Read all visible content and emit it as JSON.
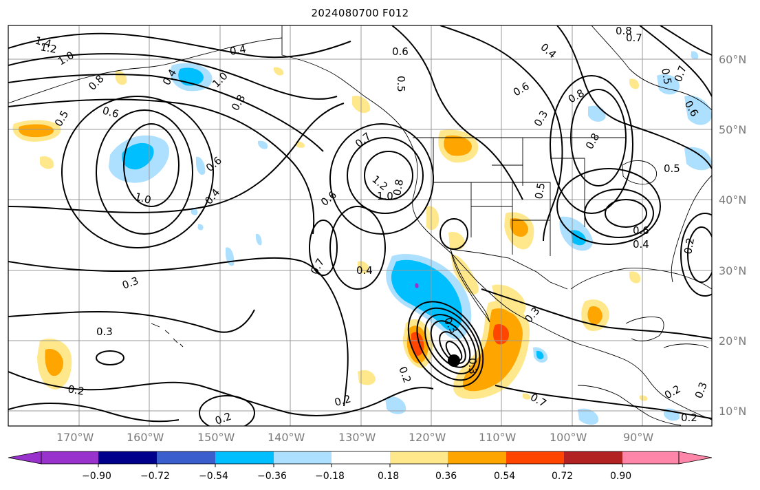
{
  "title": "2024080700 F012",
  "latitude_labels": [
    "60°N",
    "50°N",
    "40°N",
    "30°N",
    "20°N",
    "10°N"
  ],
  "longitude_labels": [
    "170°W",
    "160°W",
    "150°W",
    "140°W",
    "130°W",
    "120°W",
    "110°W",
    "100°W",
    "90°W"
  ],
  "contour_labels": [
    "1.4",
    "1.2",
    "1.0",
    "0.8",
    "0.6",
    "0.5",
    "0.4",
    "0.4",
    "0.6",
    "0.4",
    "0.5",
    "0.8",
    "0.7",
    "1.0",
    "0.8",
    "0.6",
    "0.4",
    "0.7",
    "1.2",
    "1.0",
    "0.8",
    "0.6",
    "0.3",
    "0.3",
    "0.7",
    "0.4",
    "0.2",
    "0.2",
    "0.2",
    "0.3",
    "0.3",
    "0.2",
    "0.3",
    "0.7",
    "0.6",
    "0.8",
    "0.3",
    "0.5",
    "0.6",
    "0.4",
    "0.2",
    "0.3",
    "0.2",
    "0.2",
    "0.8",
    "1.0",
    "0.5",
    "0.7",
    "0.6",
    "0.5"
  ],
  "colorbar": {
    "ticks": [
      "−0.90",
      "−0.72",
      "−0.54",
      "−0.36",
      "−0.18",
      "0.18",
      "0.36",
      "0.54",
      "0.72",
      "0.90"
    ],
    "colors": [
      "#9932CC",
      "#00008B",
      "#3A5FCD",
      "#00BFFF",
      "#ADDFFF",
      "#FFFFFF",
      "#FFE88C",
      "#FFA500",
      "#FF4500",
      "#B22222",
      "#FF86A8"
    ]
  },
  "field_colors": {
    "light_blue": "#ADDFFF",
    "blue": "#00BFFF",
    "yellow": "#FFE88C",
    "orange": "#FFA500",
    "red": "#FF4500",
    "purple": "#9932CC"
  }
}
